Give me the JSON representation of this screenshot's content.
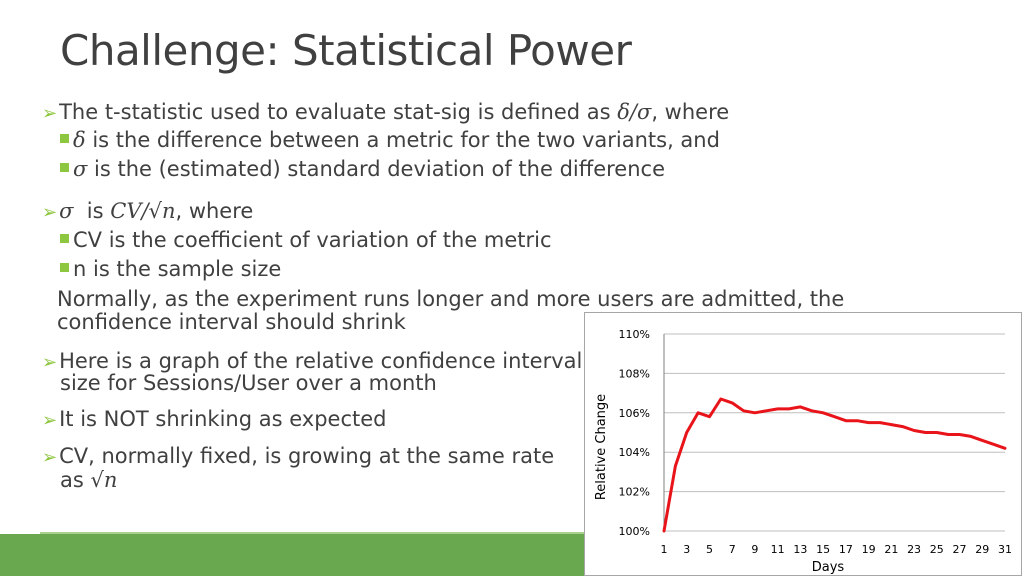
{
  "title": "Challenge: Statistical Power",
  "bullets": {
    "b1_pre": "The t-statistic used to evaluate stat-sig is defined as ",
    "b1_math": "δ/σ",
    "b1_post": ", where",
    "b1a_math": "δ",
    "b1a_text": " is the difference between a metric for the two variants, and",
    "b1b_math": "σ",
    "b1b_text": " is the (estimated) standard deviation of the difference",
    "b2_math1": "σ",
    "b2_is": "  is ",
    "b2_math2": "CV/√n",
    "b2_post": ", where",
    "b2a_text": "CV is the coefficient of variation of the metric",
    "b2b_text": "n is the sample size",
    "note_line1": "Normally, as the experiment runs longer and more users are admitted, the",
    "note_line2": "confidence interval should shrink",
    "b3_line1": "Here is a graph of the relative confidence interval",
    "b3_line2": "size for Sessions/User over a month",
    "b4_text": "It is NOT shrinking as expected",
    "b5_line1": "CV, normally fixed, is growing at the same rate",
    "b5_line2_pre": "as ",
    "b5_line2_math": "√n"
  },
  "colors": {
    "accent": "#8dc63f",
    "bar": "#6aa84f",
    "series": "#e8141a"
  },
  "chart_data": {
    "type": "line",
    "xlabel": "Days",
    "ylabel": "Relative Change",
    "ylim": [
      100,
      110
    ],
    "yticks": [
      "100%",
      "102%",
      "104%",
      "106%",
      "108%",
      "110%"
    ],
    "yticks_values": [
      100,
      102,
      104,
      106,
      108,
      110
    ],
    "xticks": [
      "1",
      "3",
      "5",
      "7",
      "9",
      "11",
      "13",
      "15",
      "17",
      "19",
      "21",
      "23",
      "25",
      "27",
      "29",
      "31"
    ],
    "grid": true,
    "series": [
      {
        "x": [
          1,
          2,
          3,
          4,
          5,
          6,
          7,
          8,
          9,
          10,
          11,
          12,
          13,
          14,
          15,
          16,
          17,
          18,
          19,
          20,
          21,
          22,
          23,
          24,
          25,
          26,
          27,
          28,
          29,
          30,
          31
        ],
        "values": [
          100.0,
          103.3,
          105.0,
          106.0,
          105.8,
          106.7,
          106.5,
          106.1,
          106.0,
          106.1,
          106.2,
          106.2,
          106.3,
          106.1,
          106.0,
          105.8,
          105.6,
          105.6,
          105.5,
          105.5,
          105.4,
          105.3,
          105.1,
          105.0,
          105.0,
          104.9,
          104.9,
          104.8,
          104.6,
          104.4,
          104.2
        ]
      }
    ]
  }
}
